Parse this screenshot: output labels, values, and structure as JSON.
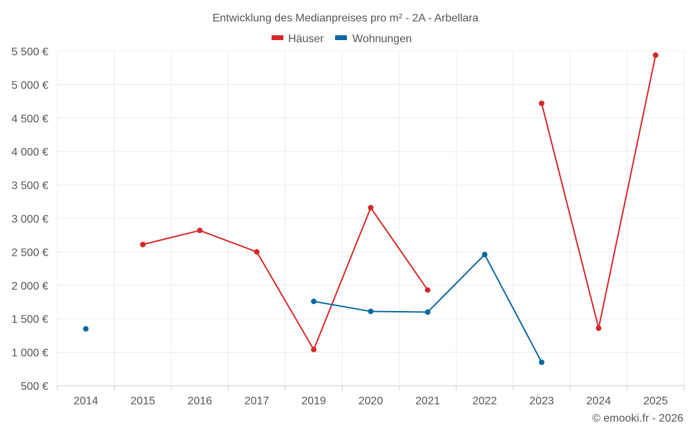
{
  "chart_data": {
    "type": "line",
    "title": "Entwicklung des Medianpreises pro m² - 2A - Arbellara",
    "categories": [
      "2014",
      "2015",
      "2016",
      "2017",
      "2019",
      "2020",
      "2021",
      "2022",
      "2023",
      "2024",
      "2025"
    ],
    "series": [
      {
        "name": "Häuser",
        "color": "#d62728",
        "values": [
          null,
          2610,
          2820,
          2500,
          1040,
          3160,
          1930,
          null,
          4720,
          1360,
          5440
        ]
      },
      {
        "name": "Wohnungen",
        "color": "#0868a0",
        "values": [
          1350,
          null,
          null,
          null,
          1760,
          1610,
          1600,
          2460,
          850,
          null,
          null
        ]
      }
    ],
    "ylim": [
      500,
      5500
    ],
    "yticks": [
      500,
      1000,
      1500,
      2000,
      2500,
      3000,
      3500,
      4000,
      4500,
      5000,
      5500
    ],
    "ytick_labels": [
      "500 €",
      "1 000 €",
      "1 500 €",
      "2 000 €",
      "2 500 €",
      "3 000 €",
      "3 500 €",
      "4 000 €",
      "4 500 €",
      "5 000 €",
      "5 500 €"
    ],
    "grid": true,
    "legend_position": "top-center"
  },
  "credit": "© emooki.fr - 2026"
}
